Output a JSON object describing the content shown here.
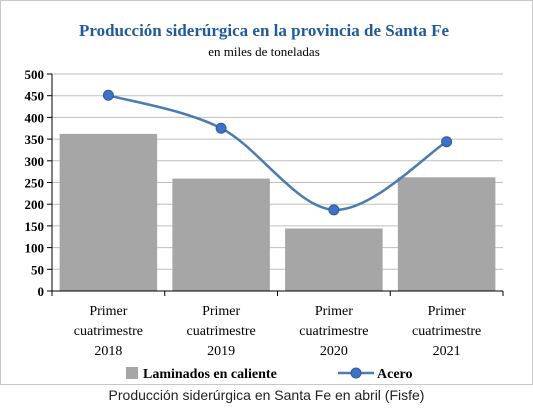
{
  "caption": "Producción siderúrgica en Santa Fe en abril (Fisfe)",
  "colors": {
    "border": "#c8c8c8",
    "title": "#1f5a9c",
    "bar": "#a6a6a6",
    "line": "#4b7bb0",
    "marker": "#3f72c7",
    "grid": "#bfbfbf",
    "axis": "#000000"
  },
  "chart_data": {
    "type": "bar",
    "title": "Producción siderúrgica en la provincia de Santa Fe",
    "subtitle": "en miles de toneladas",
    "xlabel": "",
    "ylabel": "",
    "ylim": [
      0,
      500
    ],
    "yticks": [
      0,
      50,
      100,
      150,
      200,
      250,
      300,
      350,
      400,
      450,
      500
    ],
    "grid": true,
    "legend_position": "bottom",
    "categories": [
      [
        "Primer",
        "cuatrimestre",
        "2018"
      ],
      [
        "Primer",
        "cuatrimestre",
        "2019"
      ],
      [
        "Primer",
        "cuatrimestre",
        "2020"
      ],
      [
        "Primer",
        "cuatrimestre",
        "2021"
      ]
    ],
    "series": [
      {
        "name": "Laminados en caliente",
        "type": "bar",
        "values": [
          362,
          259,
          144,
          262
        ]
      },
      {
        "name": "Acero",
        "type": "line",
        "smooth": true,
        "values": [
          451,
          375,
          187,
          344
        ]
      }
    ]
  }
}
